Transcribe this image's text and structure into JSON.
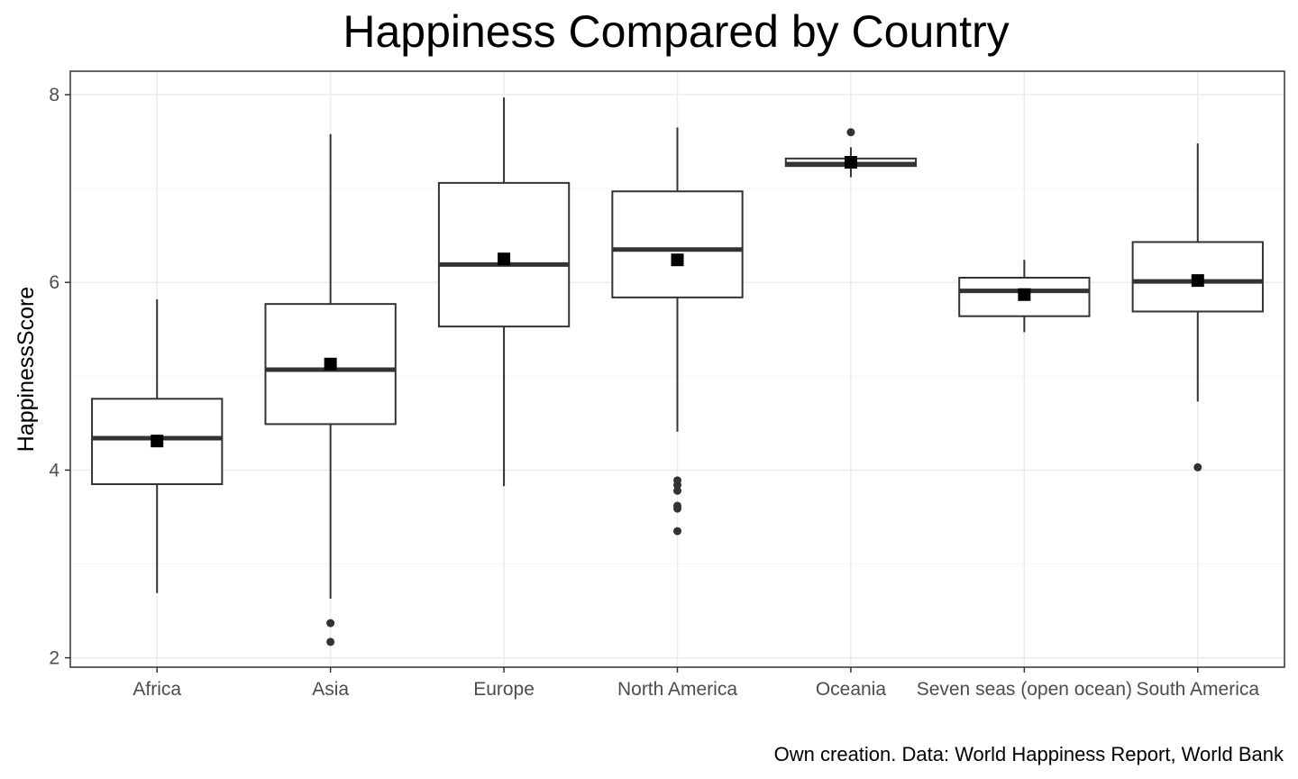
{
  "chart_data": {
    "type": "boxplot",
    "title": "Happiness Compared by Country",
    "ylabel": "HappinessScore",
    "xlabel": "",
    "caption": "Own creation. Data: World Happiness Report, World Bank",
    "ylim": [
      1.9,
      8.25
    ],
    "yticks": [
      "2",
      "4",
      "6",
      "8"
    ],
    "grid": true,
    "categories": [
      "Africa",
      "Asia",
      "Europe",
      "North America",
      "Oceania",
      "Seven seas (open ocean)",
      "South America"
    ],
    "boxes": [
      {
        "category": "Africa",
        "whisker_low": 2.69,
        "q1": 3.85,
        "median": 4.34,
        "q3": 4.76,
        "whisker_high": 5.82,
        "mean": 4.31,
        "outliers": []
      },
      {
        "category": "Asia",
        "whisker_low": 2.63,
        "q1": 4.49,
        "median": 5.07,
        "q3": 5.77,
        "whisker_high": 7.58,
        "mean": 5.13,
        "outliers": [
          2.37,
          2.17
        ]
      },
      {
        "category": "Europe",
        "whisker_low": 3.83,
        "q1": 5.53,
        "median": 6.19,
        "q3": 7.06,
        "whisker_high": 7.97,
        "mean": 6.25,
        "outliers": []
      },
      {
        "category": "North America",
        "whisker_low": 4.41,
        "q1": 5.84,
        "median": 6.35,
        "q3": 6.97,
        "whisker_high": 7.65,
        "mean": 6.24,
        "outliers": [
          3.89,
          3.84,
          3.78,
          3.62,
          3.59,
          3.35
        ]
      },
      {
        "category": "Oceania",
        "whisker_low": 7.12,
        "q1": 7.24,
        "median": 7.26,
        "q3": 7.32,
        "whisker_high": 7.44,
        "mean": 7.28,
        "outliers": [
          7.6
        ]
      },
      {
        "category": "Seven seas (open ocean)",
        "whisker_low": 5.47,
        "q1": 5.64,
        "median": 5.91,
        "q3": 6.05,
        "whisker_high": 6.24,
        "mean": 5.87,
        "outliers": []
      },
      {
        "category": "South America",
        "whisker_low": 4.73,
        "q1": 5.69,
        "median": 6.01,
        "q3": 6.43,
        "whisker_high": 7.48,
        "mean": 6.02,
        "outliers": [
          4.03
        ]
      }
    ],
    "colors": {
      "box_fill": "#ffffff",
      "box_stroke": "#333333",
      "median": "#333333",
      "mean_marker": "#000000",
      "outlier": "#333333",
      "grid_major": "#ebebeb",
      "grid_minor": "#f5f5f5",
      "panel_border": "#333333"
    }
  }
}
